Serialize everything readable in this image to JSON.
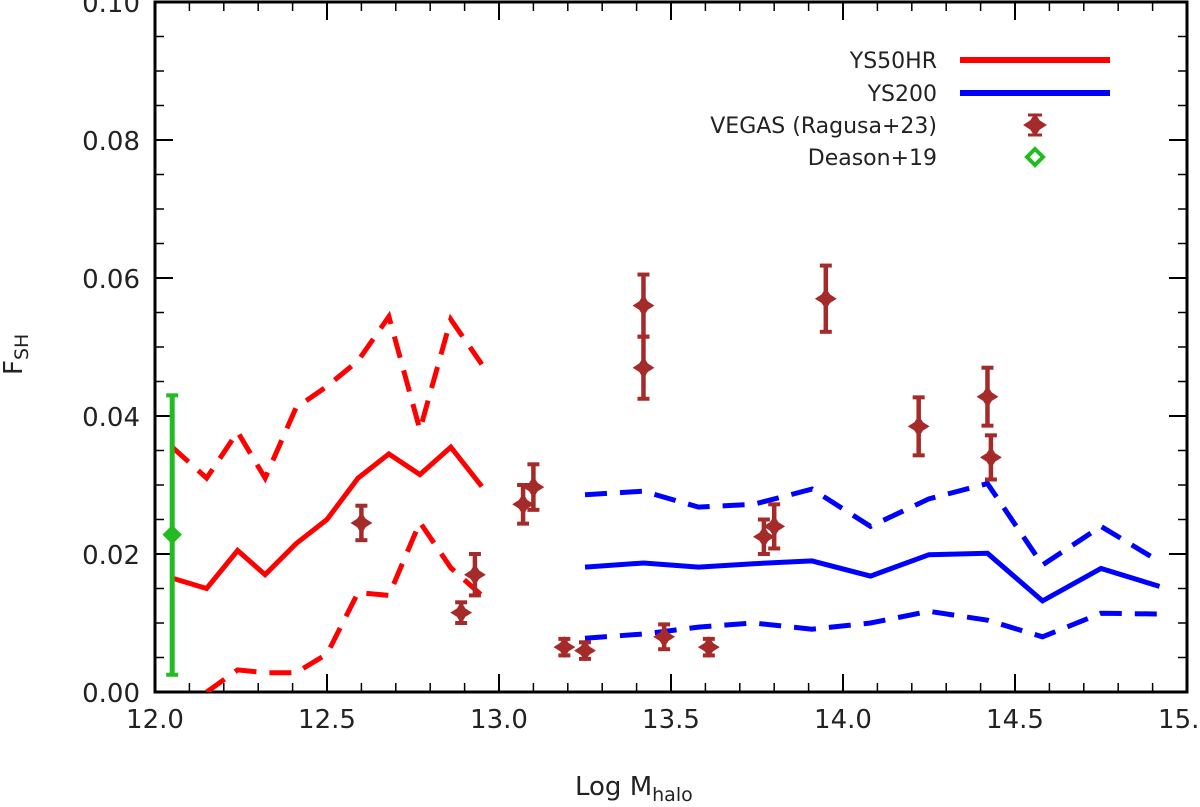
{
  "chart_data": {
    "type": "line",
    "xlabel": "Log M",
    "xlabel_sub": "halo",
    "ylabel": "F",
    "ylabel_sub": "SH",
    "xlim": [
      12.0,
      15.0
    ],
    "ylim": [
      0.0,
      0.1
    ],
    "xticks": [
      "12.0",
      "12.5",
      "13.0",
      "13.5",
      "14.0",
      "14.5",
      "15.0"
    ],
    "xtick_values": [
      12.0,
      12.5,
      13.0,
      13.5,
      14.0,
      14.5,
      15.0
    ],
    "yticks": [
      "0.00",
      "0.02",
      "0.04",
      "0.06",
      "0.08",
      "0.10"
    ],
    "ytick_values": [
      0.0,
      0.02,
      0.04,
      0.06,
      0.08,
      0.1
    ],
    "legend_position": "top-right",
    "legend": [
      {
        "label": "YS50HR",
        "marker": "line",
        "color": "#ff0000"
      },
      {
        "label": "YS200",
        "marker": "line",
        "color": "#0000ff"
      },
      {
        "label": "VEGAS (Ragusa+23)",
        "marker": "star",
        "color": "#a52a2a"
      },
      {
        "label": "Deason+19",
        "marker": "diamond",
        "color": "#22bb22"
      }
    ],
    "series": [
      {
        "name": "YS50HR",
        "color": "#ff0000",
        "x": [
          12.05,
          12.15,
          12.24,
          12.32,
          12.41,
          12.5,
          12.59,
          12.68,
          12.77,
          12.86,
          12.95
        ],
        "median": [
          0.0165,
          0.015,
          0.0205,
          0.017,
          0.0215,
          0.025,
          0.031,
          0.0345,
          0.0315,
          0.0355,
          0.0298
        ],
        "upper": [
          0.0355,
          0.031,
          0.0377,
          0.031,
          0.0412,
          0.0443,
          0.048,
          0.0544,
          0.038,
          0.054,
          0.0475
        ],
        "lower": [
          null,
          0.0,
          0.0032,
          0.0028,
          0.0028,
          0.0055,
          0.0144,
          0.014,
          0.0246,
          0.018,
          0.014
        ]
      },
      {
        "name": "YS200",
        "color": "#0000ff",
        "x": [
          13.25,
          13.42,
          13.58,
          13.74,
          13.91,
          14.08,
          14.25,
          14.42,
          14.58,
          14.75,
          14.92
        ],
        "median": [
          0.0181,
          0.0187,
          0.0181,
          0.0186,
          0.019,
          0.0168,
          0.0199,
          0.0201,
          0.0132,
          0.0179,
          0.0153
        ],
        "upper": [
          0.0286,
          0.0291,
          0.0268,
          0.0272,
          0.0294,
          0.024,
          0.028,
          0.0302,
          0.0184,
          0.024,
          0.0189
        ],
        "lower": [
          0.0078,
          0.0084,
          0.0094,
          0.01,
          0.0091,
          0.01,
          0.0117,
          0.0104,
          0.008,
          0.0114,
          0.0113
        ]
      }
    ],
    "points": [
      {
        "name": "VEGAS (Ragusa+23)",
        "color": "#a52a2a",
        "marker": "star",
        "data": [
          {
            "x": 12.6,
            "y": 0.0245,
            "err": 0.0025
          },
          {
            "x": 12.89,
            "y": 0.0115,
            "err": 0.0015
          },
          {
            "x": 12.93,
            "y": 0.017,
            "err": 0.003
          },
          {
            "x": 13.07,
            "y": 0.0272,
            "err": 0.0028
          },
          {
            "x": 13.1,
            "y": 0.0297,
            "err": 0.0033
          },
          {
            "x": 13.19,
            "y": 0.0065,
            "err": 0.0012
          },
          {
            "x": 13.25,
            "y": 0.006,
            "err": 0.0012
          },
          {
            "x": 13.42,
            "y": 0.056,
            "err": 0.0045
          },
          {
            "x": 13.42,
            "y": 0.047,
            "err": 0.0045
          },
          {
            "x": 13.48,
            "y": 0.008,
            "err": 0.0018
          },
          {
            "x": 13.61,
            "y": 0.0065,
            "err": 0.0012
          },
          {
            "x": 13.77,
            "y": 0.0225,
            "err": 0.0025
          },
          {
            "x": 13.8,
            "y": 0.024,
            "err": 0.0032
          },
          {
            "x": 13.95,
            "y": 0.057,
            "err": 0.0048
          },
          {
            "x": 14.22,
            "y": 0.0385,
            "err": 0.0042
          },
          {
            "x": 14.42,
            "y": 0.0428,
            "err": 0.0042
          },
          {
            "x": 14.43,
            "y": 0.034,
            "err": 0.0032
          }
        ]
      },
      {
        "name": "Deason+19",
        "color": "#22bb22",
        "marker": "diamond",
        "data": [
          {
            "x": 12.05,
            "y": 0.0228,
            "err_low": 0.0203,
            "err_high": 0.0202
          }
        ]
      }
    ]
  }
}
